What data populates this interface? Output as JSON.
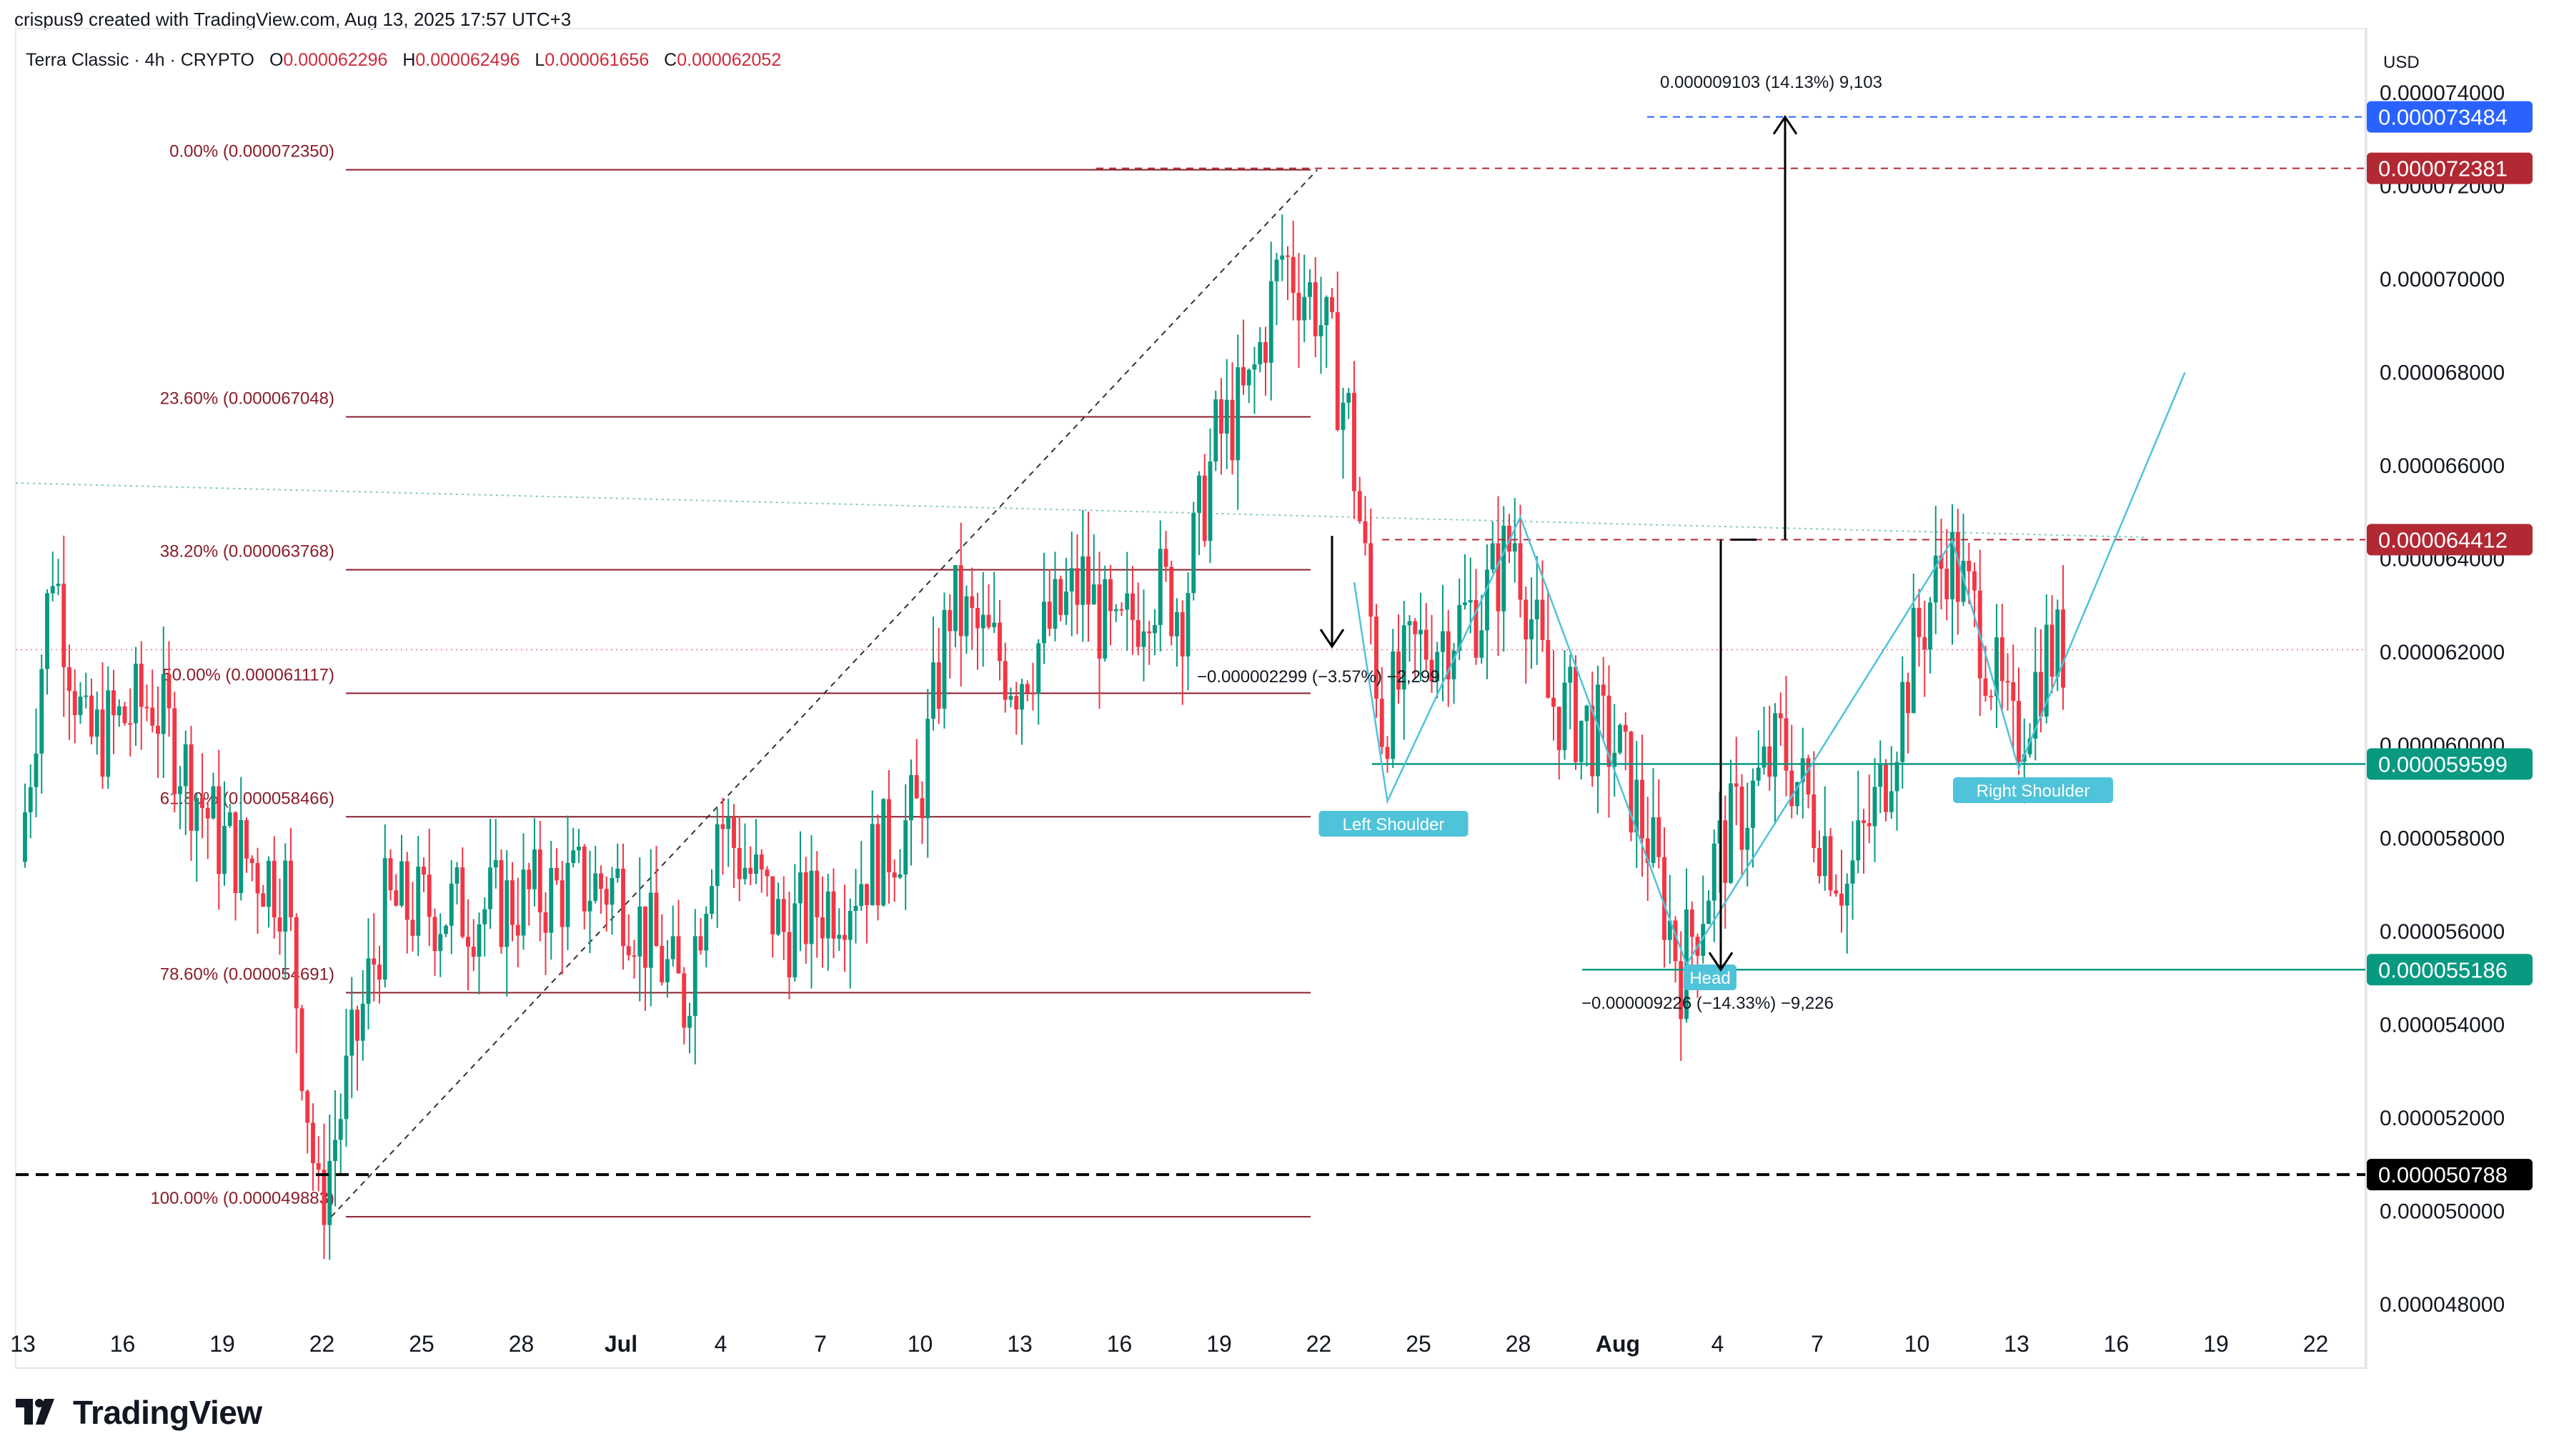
{
  "caption": "crispus9 created with TradingView.com, Aug 13, 2025 17:57 UTC+3",
  "symbol": {
    "name": "Terra Classic · 4h · CRYPTO",
    "ohlc": [
      {
        "k": "O",
        "v": "0.000062296"
      },
      {
        "k": "H",
        "v": "0.000062496"
      },
      {
        "k": "L",
        "v": "0.000061656"
      },
      {
        "k": "C",
        "v": "0.000062052"
      }
    ]
  },
  "brand": "TradingView",
  "colors": {
    "up": "#089981",
    "down": "#f23645",
    "fib": "#8a1c2a",
    "pattern": "#4fc3d9",
    "blue": "#2962ff",
    "green": "#089981",
    "red": "#b22833",
    "black": "#000000"
  },
  "chart_data": {
    "type": "candlestick",
    "currency": "USD",
    "ylim": [
      4.7e-05,
      7.5e-05
    ],
    "y_ticks": [
      "0.000074000",
      "0.000072000",
      "0.000070000",
      "0.000068000",
      "0.000066000",
      "0.000064000",
      "0.000062000",
      "0.000060000",
      "0.000058000",
      "0.000056000",
      "0.000054000",
      "0.000052000",
      "0.000050000",
      "0.000048000"
    ],
    "x_ticks": [
      "13",
      "16",
      "19",
      "22",
      "25",
      "28",
      "Jul",
      "4",
      "7",
      "10",
      "13",
      "16",
      "19",
      "22",
      "25",
      "28",
      "Aug",
      "4",
      "7",
      "10",
      "13",
      "16",
      "19",
      "22"
    ],
    "price_path": [
      {
        "date": "Jun 13",
        "price": 5.75e-05
      },
      {
        "date": "Jun 14",
        "price": 6.4e-05
      },
      {
        "date": "Jun 15",
        "price": 6e-05
      },
      {
        "date": "Jun 17",
        "price": 6.1e-05
      },
      {
        "date": "Jun 19",
        "price": 5.8e-05
      },
      {
        "date": "Jun 21",
        "price": 5.7e-05
      },
      {
        "date": "Jun 22",
        "price": 5e-05
      },
      {
        "date": "Jun 24",
        "price": 5.65e-05
      },
      {
        "date": "Jun 27",
        "price": 5.65e-05
      },
      {
        "date": "Jun 30",
        "price": 5.7e-05
      },
      {
        "date": "Jul 1",
        "price": 5.7e-05
      },
      {
        "date": "Jul 3",
        "price": 5.45e-05
      },
      {
        "date": "Jul 4",
        "price": 5.85e-05
      },
      {
        "date": "Jul 6",
        "price": 5.6e-05
      },
      {
        "date": "Jul 8",
        "price": 5.7e-05
      },
      {
        "date": "Jul 10",
        "price": 5.85e-05
      },
      {
        "date": "Jul 11",
        "price": 6.3e-05
      },
      {
        "date": "Jul 13",
        "price": 6.15e-05
      },
      {
        "date": "Jul 15",
        "price": 6.35e-05
      },
      {
        "date": "Jul 16",
        "price": 6.2e-05
      },
      {
        "date": "Jul 17",
        "price": 6.35e-05
      },
      {
        "date": "Jul 18",
        "price": 6.3e-05
      },
      {
        "date": "Jul 19",
        "price": 6.65e-05
      },
      {
        "date": "Jul 20",
        "price": 6.75e-05
      },
      {
        "date": "Jul 21",
        "price": 7.05e-05
      },
      {
        "date": "Jul 22",
        "price": 6.95e-05
      },
      {
        "date": "Jul 23",
        "price": 6.7e-05
      },
      {
        "date": "Jul 24",
        "price": 6.05e-05
      },
      {
        "date": "Jul 25",
        "price": 6.2e-05
      },
      {
        "date": "Jul 27",
        "price": 6.3e-05
      },
      {
        "date": "Jul 28",
        "price": 6.45e-05
      },
      {
        "date": "Jul 29",
        "price": 6.1e-05
      },
      {
        "date": "Jul 31",
        "price": 6e-05
      },
      {
        "date": "Aug 1",
        "price": 5.8e-05
      },
      {
        "date": "Aug 2",
        "price": 5.52e-05
      },
      {
        "date": "Aug 3",
        "price": 5.75e-05
      },
      {
        "date": "Aug 5",
        "price": 6e-05
      },
      {
        "date": "Aug 7",
        "price": 5.7e-05
      },
      {
        "date": "Aug 8",
        "price": 5.9e-05
      },
      {
        "date": "Aug 9",
        "price": 6.2e-05
      },
      {
        "date": "Aug 10",
        "price": 6.42e-05
      },
      {
        "date": "Aug 11",
        "price": 6.25e-05
      },
      {
        "date": "Aug 12",
        "price": 6e-05
      },
      {
        "date": "Aug 13",
        "price": 6.2e-05
      }
    ],
    "fib_levels": [
      {
        "label": "0.00% (0.000072350)",
        "price": 7.235e-05
      },
      {
        "label": "23.60% (0.000067048)",
        "price": 6.7048e-05
      },
      {
        "label": "38.20% (0.000063768)",
        "price": 6.3768e-05
      },
      {
        "label": "50.00% (0.000061117)",
        "price": 6.1117e-05
      },
      {
        "label": "61.80% (0.000058466)",
        "price": 5.8466e-05
      },
      {
        "label": "78.60% (0.000054691)",
        "price": 5.4691e-05
      },
      {
        "label": "100.00% (0.000049883)",
        "price": 4.9883e-05
      }
    ],
    "price_labels": [
      {
        "text": "0.000073484",
        "price": 7.3484e-05,
        "color": "#2962ff"
      },
      {
        "text": "0.000072381",
        "price": 7.2381e-05,
        "color": "#b22833"
      },
      {
        "text": "0.000064412",
        "price": 6.4412e-05,
        "color": "#b22833"
      },
      {
        "text": "0.000059599",
        "price": 5.9599e-05,
        "color": "#089981"
      },
      {
        "text": "0.000055186",
        "price": 5.5186e-05,
        "color": "#089981"
      },
      {
        "text": "0.000050788",
        "price": 5.0788e-05,
        "color": "#000000"
      }
    ],
    "annotations": [
      {
        "text": "0.000009103 (14.13%) 9,103"
      },
      {
        "text": "−0.000002299 (−3.57%) −2,299"
      },
      {
        "text": "−0.000009226 (−14.33%) −9,226"
      }
    ],
    "pattern_labels": [
      "Left Shoulder",
      "Head",
      "Right Shoulder"
    ],
    "current_price": 6.2052e-05
  }
}
